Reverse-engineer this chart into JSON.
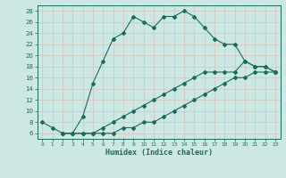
{
  "xlabel": "Humidex (Indice chaleur)",
  "background_color": "#cde8e4",
  "grid_color": "#b0d4ce",
  "line_color": "#1a6b5a",
  "xlim": [
    -0.5,
    23.5
  ],
  "ylim": [
    5,
    29
  ],
  "xticks": [
    0,
    1,
    2,
    3,
    4,
    5,
    6,
    7,
    8,
    9,
    10,
    11,
    12,
    13,
    14,
    15,
    16,
    17,
    18,
    19,
    20,
    21,
    22,
    23
  ],
  "yticks": [
    6,
    8,
    10,
    12,
    14,
    16,
    18,
    20,
    22,
    24,
    26,
    28
  ],
  "line1_x": [
    0,
    1,
    2,
    3,
    4,
    5,
    6,
    7,
    8,
    9,
    10,
    11,
    12,
    13,
    14,
    15,
    16,
    17,
    18,
    19,
    20,
    21,
    22,
    23
  ],
  "line1_y": [
    8,
    7,
    6,
    6,
    9,
    15,
    19,
    23,
    24,
    27,
    26,
    25,
    27,
    27,
    28,
    27,
    25,
    23,
    22,
    22,
    19,
    18,
    18,
    17
  ],
  "line2_x": [
    2,
    3,
    4,
    5,
    6,
    7,
    8,
    9,
    10,
    11,
    12,
    13,
    14,
    15,
    16,
    17,
    18,
    19,
    20,
    21,
    22,
    23
  ],
  "line2_y": [
    6,
    6,
    6,
    6,
    7,
    8,
    9,
    10,
    11,
    12,
    13,
    14,
    15,
    16,
    17,
    17,
    17,
    17,
    19,
    18,
    18,
    17
  ],
  "line3_x": [
    2,
    3,
    4,
    5,
    6,
    7,
    8,
    9,
    10,
    11,
    12,
    13,
    14,
    15,
    16,
    17,
    18,
    19,
    20,
    21,
    22,
    23
  ],
  "line3_y": [
    6,
    6,
    6,
    6,
    6,
    6,
    7,
    7,
    8,
    8,
    9,
    10,
    11,
    12,
    13,
    14,
    15,
    16,
    16,
    17,
    17,
    17
  ]
}
